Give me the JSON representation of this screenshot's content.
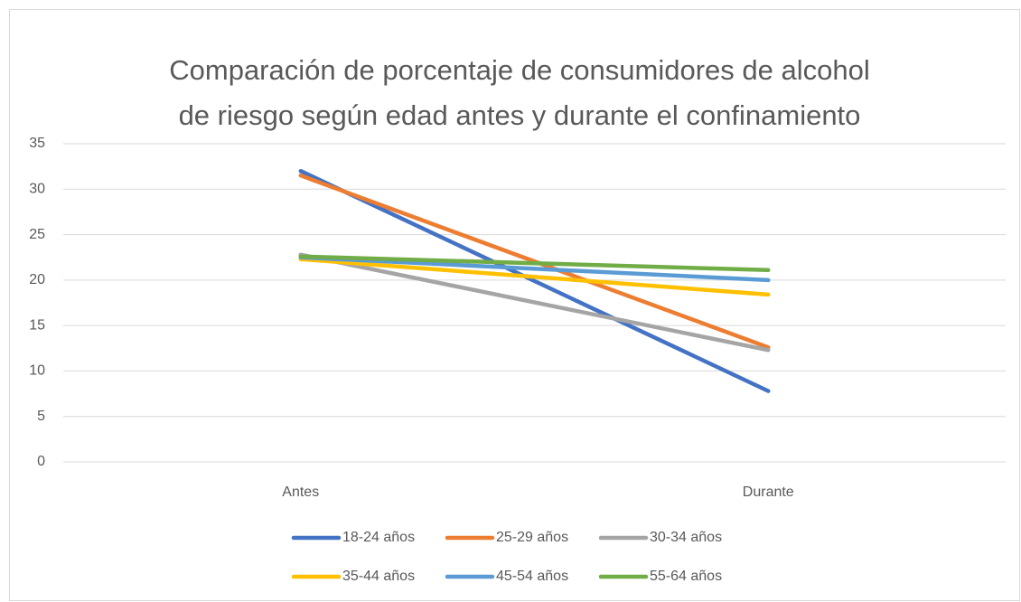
{
  "chart_data": {
    "type": "line",
    "title": [
      "Comparación de porcentaje de consumidores de alcohol",
      "de riesgo según edad antes y durante el confinamiento"
    ],
    "categories": [
      "Antes",
      "Durante"
    ],
    "series": [
      {
        "name": "18-24 años",
        "color": "#4472c4",
        "values": [
          32,
          7.8
        ]
      },
      {
        "name": "25-29 años",
        "color": "#ed7d31",
        "values": [
          31.5,
          12.6
        ]
      },
      {
        "name": "30-34 años",
        "color": "#a5a5a5",
        "values": [
          22.8,
          12.3
        ]
      },
      {
        "name": "35-44 años",
        "color": "#ffc000",
        "values": [
          22.3,
          18.4
        ]
      },
      {
        "name": "45-54 años",
        "color": "#5b9bd5",
        "values": [
          22.5,
          20
        ]
      },
      {
        "name": "55-64 años",
        "color": "#70ad47",
        "values": [
          22.6,
          21.1
        ]
      }
    ],
    "ylim": [
      0,
      35
    ],
    "yticks": [
      0,
      5,
      10,
      15,
      20,
      25,
      30,
      35
    ],
    "grid": true,
    "legend": "bottom"
  }
}
